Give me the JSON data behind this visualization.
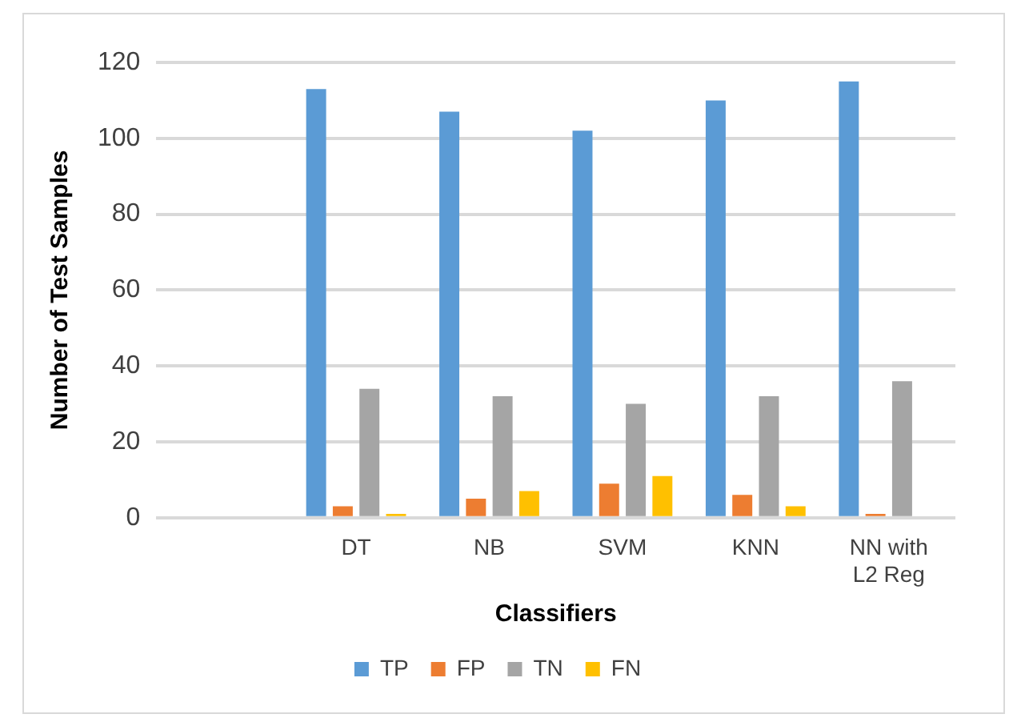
{
  "chart_data": {
    "type": "bar",
    "xlabel": "Classifiers",
    "ylabel": "Number of Test Samples",
    "categories": [
      null,
      "DT",
      "NB",
      "SVM",
      "KNN",
      "NN with L2 Reg"
    ],
    "series": [
      {
        "name": "TP",
        "color": "#5b9bd5",
        "values": [
          null,
          113,
          107,
          102,
          110,
          115
        ]
      },
      {
        "name": "FP",
        "color": "#ed7d31",
        "values": [
          null,
          3,
          5,
          9,
          6,
          1
        ]
      },
      {
        "name": "TN",
        "color": "#a5a5a5",
        "values": [
          null,
          34,
          32,
          30,
          32,
          36
        ]
      },
      {
        "name": "FN",
        "color": "#ffc000",
        "values": [
          null,
          1,
          7,
          11,
          3,
          0
        ]
      }
    ],
    "ylim": [
      0,
      120
    ],
    "yticks": [
      0,
      20,
      40,
      60,
      80,
      100,
      120
    ],
    "grid": "y",
    "legend": "bottom"
  }
}
